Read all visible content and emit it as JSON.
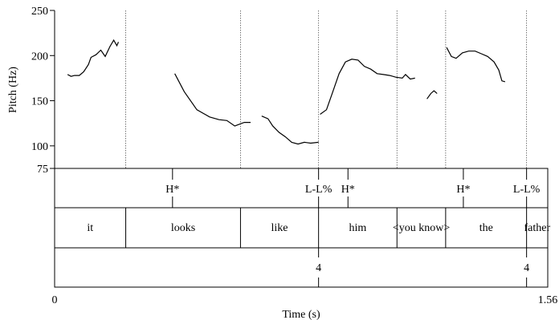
{
  "chart_data": {
    "type": "line",
    "xlabel": "Time (s)",
    "ylabel": "Pitch (Hz)",
    "xlim": [
      0,
      1.56
    ],
    "ylim": [
      75,
      250
    ],
    "x_tick_labels": [
      "0",
      "1.56"
    ],
    "y_ticks": [
      75,
      100,
      150,
      200,
      250
    ],
    "pitch_contour": [
      [
        [
          0.041,
          179
        ],
        [
          0.052,
          177
        ],
        [
          0.063,
          178
        ],
        [
          0.078,
          178
        ],
        [
          0.092,
          182
        ],
        [
          0.107,
          190
        ],
        [
          0.115,
          198
        ],
        [
          0.131,
          201
        ],
        [
          0.146,
          206
        ],
        [
          0.16,
          199
        ],
        [
          0.175,
          210
        ],
        [
          0.187,
          217
        ],
        [
          0.197,
          211
        ],
        [
          0.202,
          215
        ]
      ],
      [
        [
          0.38,
          180
        ],
        [
          0.41,
          160
        ],
        [
          0.45,
          140
        ],
        [
          0.49,
          132
        ],
        [
          0.52,
          129
        ],
        [
          0.545,
          128
        ],
        [
          0.57,
          122
        ],
        [
          0.6,
          126
        ],
        [
          0.62,
          126
        ]
      ],
      [
        [
          0.655,
          133
        ],
        [
          0.675,
          130
        ],
        [
          0.69,
          122
        ],
        [
          0.71,
          115
        ],
        [
          0.73,
          110
        ],
        [
          0.75,
          104
        ],
        [
          0.77,
          102
        ],
        [
          0.79,
          104
        ],
        [
          0.81,
          103
        ],
        [
          0.835,
          104
        ]
      ],
      [
        [
          0.84,
          135
        ],
        [
          0.86,
          140
        ],
        [
          0.88,
          160
        ],
        [
          0.9,
          180
        ],
        [
          0.92,
          193
        ],
        [
          0.94,
          196
        ],
        [
          0.96,
          195
        ],
        [
          0.98,
          188
        ],
        [
          1.0,
          185
        ],
        [
          1.02,
          180
        ],
        [
          1.04,
          179
        ],
        [
          1.06,
          178
        ],
        [
          1.08,
          176
        ],
        [
          1.1,
          175
        ],
        [
          1.11,
          179
        ],
        [
          1.125,
          174
        ],
        [
          1.14,
          175
        ]
      ],
      [
        [
          1.178,
          152
        ],
        [
          1.19,
          158
        ],
        [
          1.2,
          161
        ],
        [
          1.21,
          158
        ]
      ],
      [
        [
          1.24,
          209
        ],
        [
          1.255,
          199
        ],
        [
          1.27,
          197
        ],
        [
          1.29,
          203
        ],
        [
          1.31,
          205
        ],
        [
          1.33,
          205
        ],
        [
          1.35,
          202
        ],
        [
          1.37,
          199
        ],
        [
          1.39,
          193
        ],
        [
          1.405,
          184
        ],
        [
          1.415,
          172
        ],
        [
          1.425,
          171
        ]
      ]
    ],
    "boundaries": [
      0.225,
      0.588,
      0.835,
      1.083,
      1.237,
      1.493
    ],
    "tones": [
      {
        "label": "H*",
        "time": 0.373
      },
      {
        "label": "L-L%",
        "time": 0.835
      },
      {
        "label": "H*",
        "time": 0.928
      },
      {
        "label": "H*",
        "time": 1.293
      },
      {
        "label": "L-L%",
        "time": 1.493
      }
    ],
    "words": [
      {
        "label": "it",
        "start": 0,
        "end": 0.225
      },
      {
        "label": "looks",
        "start": 0.225,
        "end": 0.588
      },
      {
        "label": "like",
        "start": 0.588,
        "end": 0.835
      },
      {
        "label": "him",
        "start": 0.835,
        "end": 1.083
      },
      {
        "label": "<you know>",
        "start": 1.083,
        "end": 1.237
      },
      {
        "label": "the",
        "start": 1.237,
        "end": 1.493
      },
      {
        "label": "father",
        "start": 1.493,
        "end": 1.56
      }
    ],
    "break_indices": [
      {
        "label": "4",
        "time": 0.835
      },
      {
        "label": "4",
        "time": 1.493
      }
    ]
  }
}
